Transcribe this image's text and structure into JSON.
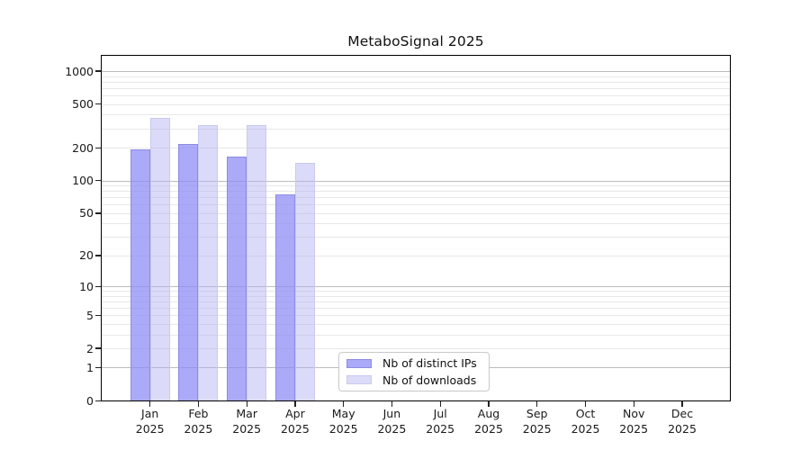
{
  "chart_data": {
    "type": "bar",
    "title": "MetaboSignal 2025",
    "categories": [
      "Jan",
      "Feb",
      "Mar",
      "Apr",
      "May",
      "Jun",
      "Jul",
      "Aug",
      "Sep",
      "Oct",
      "Nov",
      "Dec"
    ],
    "year": "2025",
    "series": [
      {
        "name": "Nb of distinct IPs",
        "values": [
          192,
          214,
          166,
          75,
          0,
          0,
          0,
          0,
          0,
          0,
          0,
          0
        ],
        "color": "#aaaaf8",
        "fill": "rgba(142,142,246,0.75)",
        "edge": "#8c8ce1"
      },
      {
        "name": "Nb of downloads",
        "values": [
          372,
          320,
          320,
          144,
          0,
          0,
          0,
          0,
          0,
          0,
          0,
          0
        ],
        "color": "#dcdcf8",
        "fill": "rgba(175,176,242,0.45)",
        "edge": "#c8caf0"
      }
    ],
    "yscale": "log10(1+v)",
    "yticks": [
      0,
      1,
      2,
      5,
      10,
      20,
      50,
      100,
      200,
      500,
      1000
    ],
    "minor_gridlines": [
      3,
      4,
      6,
      7,
      8,
      9,
      30,
      40,
      60,
      70,
      80,
      90,
      300,
      400,
      600,
      700,
      800,
      900
    ],
    "ylim": [
      0,
      1400
    ],
    "xlabel": "",
    "ylabel": "",
    "grid": true,
    "legend_position": "lower center"
  },
  "colors": {
    "background": "#ffffff",
    "axis": "#000000",
    "text": "#1a1a1a",
    "grid_decade": "#bcbcbc",
    "grid_minor": "#e8e8e8"
  }
}
